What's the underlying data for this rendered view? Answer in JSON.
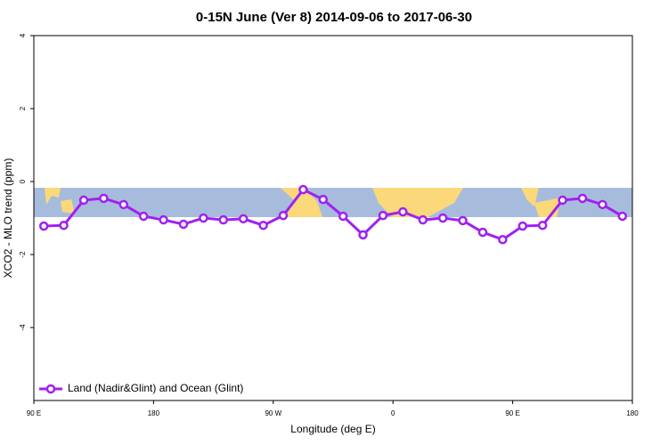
{
  "chart_data": {
    "type": "line",
    "title": "0-15N June (Ver 8)   2014-09-06 to 2017-06-30",
    "x_label": "Longitude (deg E)",
    "y_label": "XCO2 - MLO trend (ppm)",
    "x": [
      97.5,
      112.5,
      127.5,
      142.5,
      157.5,
      172.5,
      187.5,
      202.5,
      217.5,
      232.5,
      247.5,
      262.5,
      277.5,
      292.5,
      307.5,
      322.5,
      337.5,
      352.5,
      367.5,
      382.5,
      397.5,
      412.5,
      427.5,
      442.5,
      457.5,
      472.5,
      487.5,
      502.5,
      517.5,
      532.5
    ],
    "series": [
      {
        "name": "Land (Nadir&Glint) and Ocean (Glint)",
        "color": "#a020f0",
        "values": [
          -1.22,
          -1.2,
          -0.51,
          -0.46,
          -0.63,
          -0.95,
          -1.05,
          -1.17,
          -1.0,
          -1.05,
          -1.02,
          -1.2,
          -0.93,
          -0.22,
          -0.49,
          -0.95,
          -1.46,
          -0.93,
          -0.83,
          -1.05,
          -1.0,
          -1.07,
          -1.39,
          -1.59,
          -1.22,
          -1.2,
          -0.51,
          -0.46,
          -0.63,
          -0.95
        ]
      }
    ],
    "xlim": [
      90,
      540
    ],
    "xticks": [
      {
        "value": 90,
        "label": "90 E"
      },
      {
        "value": 180,
        "label": "180"
      },
      {
        "value": 270,
        "label": "90 W"
      },
      {
        "value": 360,
        "label": "0"
      },
      {
        "value": 450,
        "label": "90 E"
      },
      {
        "value": 540,
        "label": "180"
      }
    ],
    "ylim": [
      -6,
      4
    ],
    "yticks": [
      4,
      2,
      0,
      -2,
      -4
    ],
    "legend": "bottom-left"
  }
}
